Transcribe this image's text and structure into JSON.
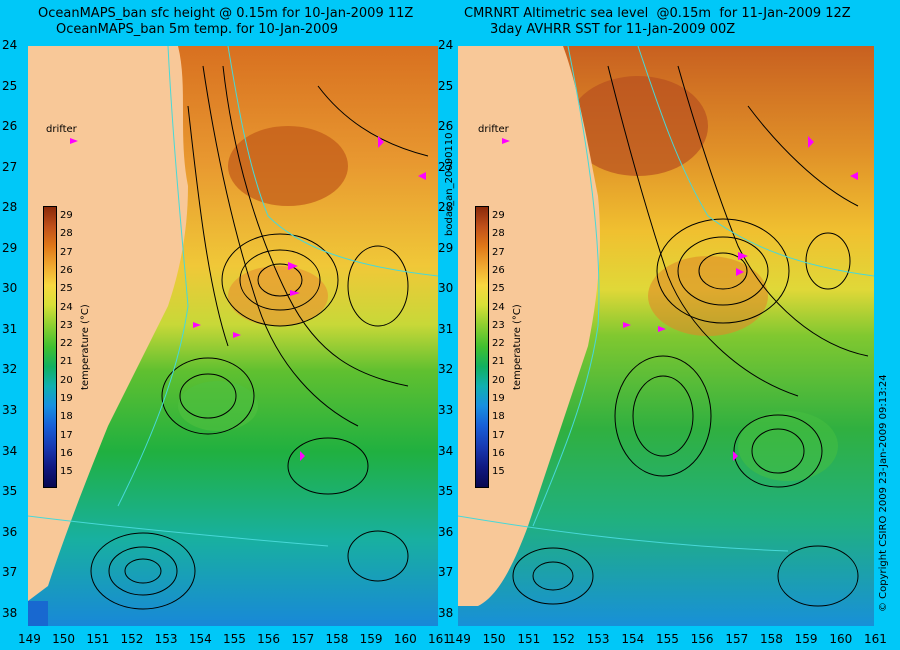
{
  "titles": {
    "left_line1": "OceanMAPS_ban sfc height @ 0.15m for 10-Jan-2009 11Z",
    "left_line2": "OceanMAPS_ban 5m temp. for 10-Jan-2009",
    "right_line1": "CMRNRT Altimetric sea level  @0.15m  for 11-Jan-2009 12Z",
    "right_line2": "3day AVHRR SST for 11-Jan-2009 00Z"
  },
  "y_ticks": [
    "24",
    "25",
    "26",
    "27",
    "28",
    "29",
    "30",
    "31",
    "32",
    "33",
    "34",
    "35",
    "36",
    "37",
    "38"
  ],
  "x_ticks": [
    "149",
    "150",
    "151",
    "152",
    "153",
    "154",
    "155",
    "156",
    "157",
    "158",
    "159",
    "160",
    "161"
  ],
  "colorbar": {
    "ticks": [
      "29",
      "28",
      "27",
      "26",
      "25",
      "24",
      "23",
      "22",
      "21",
      "20",
      "19",
      "18",
      "17",
      "16",
      "15"
    ],
    "label": "temperature (°C)"
  },
  "drifter_label": "drifter",
  "vertical_texts": {
    "bodas": "bodas_an_20090110",
    "copyright": "© Copyright CSIRO 2009   23-Jan-2009 09:13:24"
  },
  "colors": {
    "background": "#00c8f8",
    "land": "#f8c898",
    "drifter": "#ff00ff",
    "contour": "#000000"
  }
}
